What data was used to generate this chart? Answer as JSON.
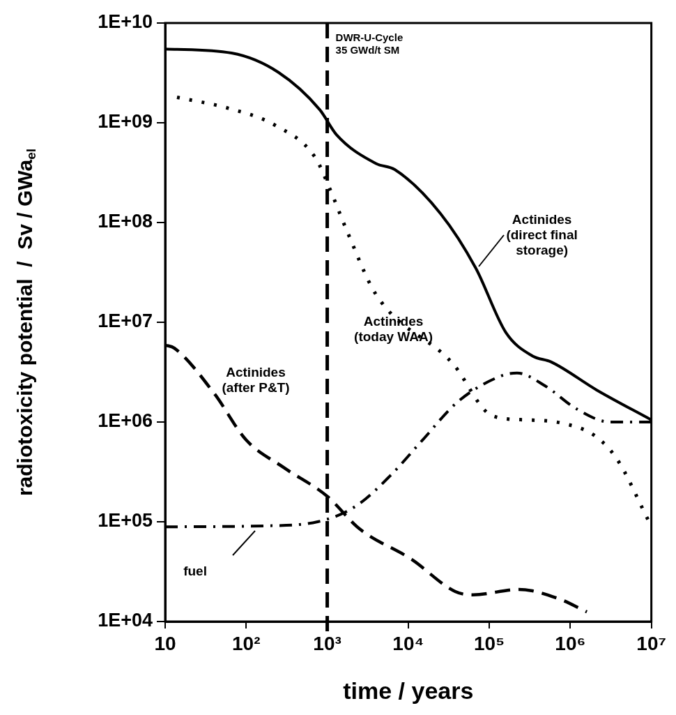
{
  "chart_data": {
    "type": "line",
    "xlabel": "time / years",
    "ylabel": "radiotoxicity potential  /  Sv / GWa$_{el}$",
    "log": "xy",
    "grid": false,
    "legend": false,
    "marker": "none",
    "xlim": [
      10,
      10000000
    ],
    "xticks": [
      10,
      {
        "value": 100,
        "label": "10²"
      },
      {
        "value": 1000,
        "label": "10³"
      },
      {
        "value": 10000,
        "label": "10⁴"
      },
      {
        "value": 100000,
        "label": "10⁵"
      },
      {
        "value": 1000000,
        "label": "10⁶"
      },
      {
        "value": 10000000,
        "label": "10⁷"
      }
    ],
    "ylim": [
      10000,
      10000000000
    ],
    "yticks": [
      {
        "value": 10000,
        "label": "1E+04"
      },
      {
        "value": 100000,
        "label": "1E+05"
      },
      {
        "value": 1000000,
        "label": "1E+06"
      },
      {
        "value": 10000000,
        "label": "1E+07"
      },
      {
        "value": 100000000,
        "label": "1E+08"
      },
      {
        "value": 1000000000,
        "label": "1E+09"
      },
      {
        "value": 10000000000,
        "label": "1E+10"
      }
    ],
    "ref_lines": [
      {
        "axis": "x",
        "value": 1000,
        "label": "DWR-U-Cycle 35 GWd/t SM",
        "color": "#000000",
        "line_style": "dashed"
      }
    ],
    "series": [
      {
        "name": "Actinides (direct final storage)",
        "color": "#000000",
        "line_style": "solid",
        "x": [
          10,
          66,
          250,
          810,
          1300,
          4000,
          6800,
          25000,
          68000,
          160000,
          340000,
          580000,
          2100000,
          10000000
        ],
        "values": [
          5500000000,
          5000000000,
          3200000000,
          1350000000,
          760000000,
          390000000,
          340000000,
          123000000,
          35000000,
          7900000,
          4600000,
          4000000,
          2100000,
          1050000
        ]
      },
      {
        "name": "Actinides (today WAA)",
        "color": "#000000",
        "line_style": "dotted",
        "x": [
          14,
          60,
          230,
          710,
          1070,
          1800,
          4000,
          35000,
          110000,
          290000,
          760000,
          2000000,
          3800000,
          9100000
        ],
        "values": [
          1800000000,
          1400000000,
          940000000,
          450000000,
          220000000,
          78000000,
          19000000,
          3900000,
          1150000,
          1050000,
          980000,
          730000,
          420000,
          105000
        ]
      },
      {
        "name": "fuel",
        "color": "#000000",
        "line_style": "dashdot",
        "x": [
          10,
          170,
          760,
          2300,
          6000,
          15000,
          41000,
          140000,
          220000,
          490000,
          1200000,
          3100000,
          10000000
        ],
        "values": [
          89000,
          91000,
          100000,
          145000,
          290000,
          660000,
          1600000,
          2900000,
          3100000,
          2300000,
          1350000,
          1000000,
          1000000
        ]
      },
      {
        "name": "Actinides (after P&T)",
        "color": "#000000",
        "line_style": "dashed",
        "x": [
          10,
          13,
          40,
          100,
          290,
          1000,
          2500,
          11000,
          38000,
          63000,
          230000,
          710000,
          1600000
        ],
        "values": [
          5900000,
          5500000,
          1950000,
          660000,
          350000,
          180000,
          85000,
          42000,
          20000,
          18500,
          21000,
          17000,
          12500
        ]
      }
    ]
  }
}
